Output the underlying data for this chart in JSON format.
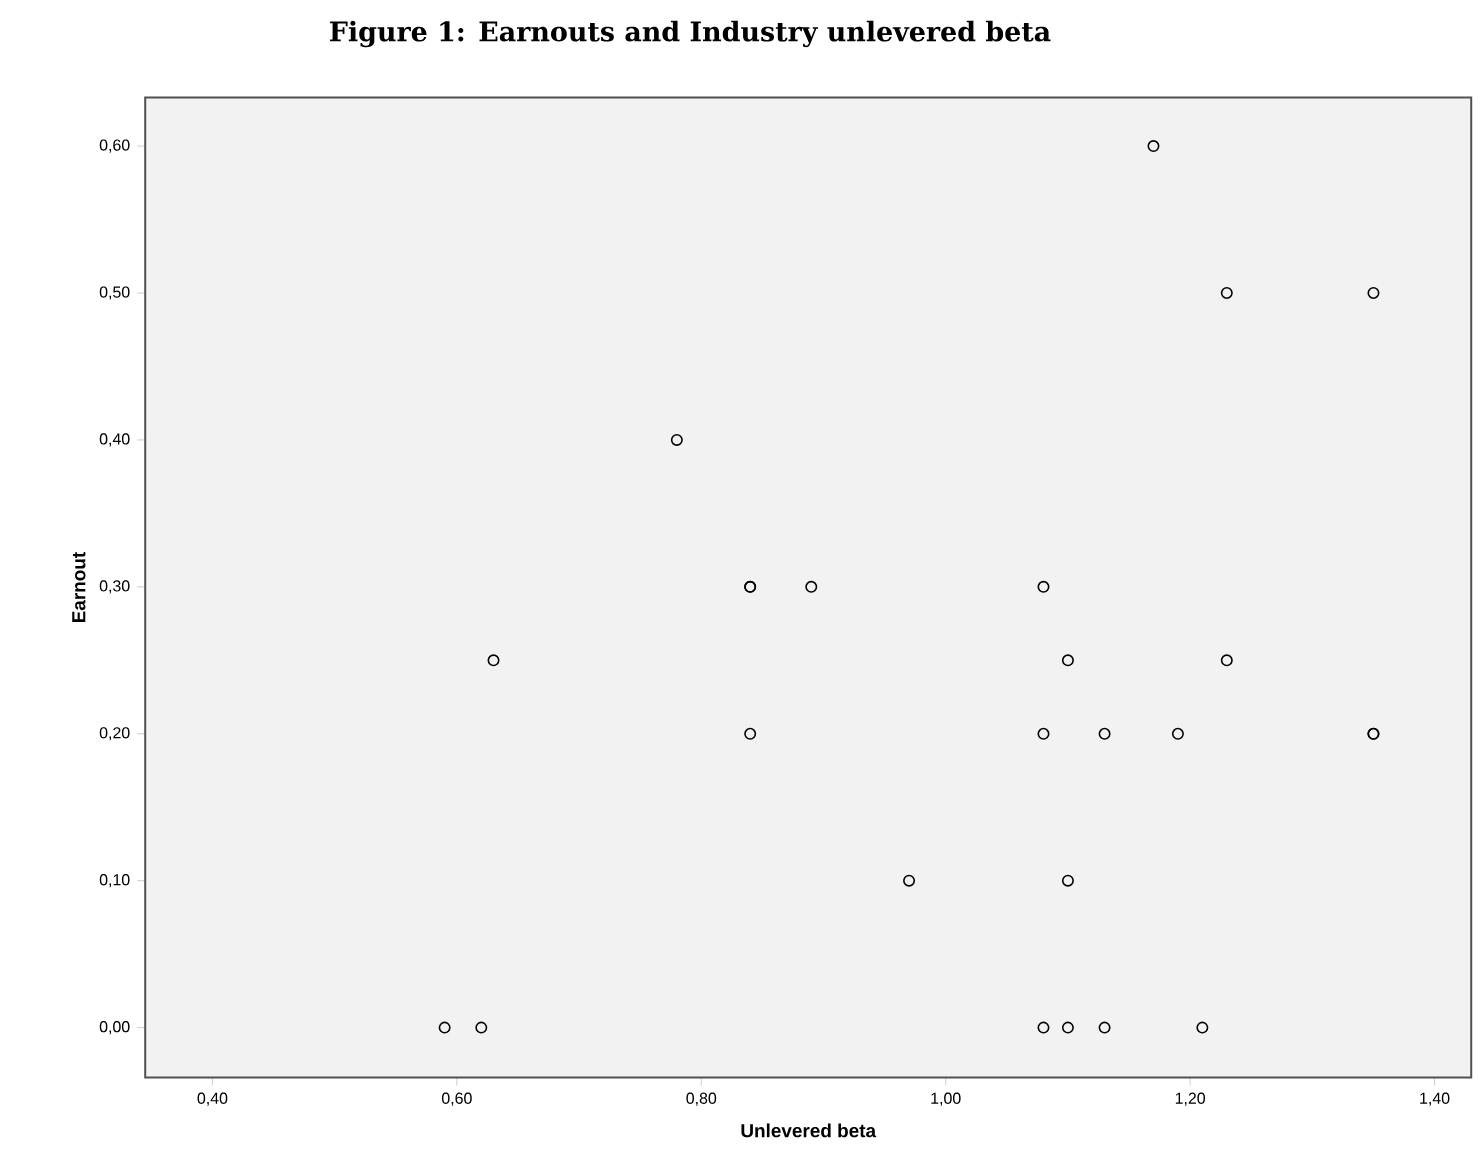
{
  "chart_data": {
    "type": "scatter",
    "title": "Figure 1: Earnouts and Industry unlevered beta",
    "xlabel": "Unlevered beta",
    "ylabel": "Earnout",
    "x": [
      0.59,
      0.62,
      1.08,
      1.1,
      1.13,
      1.21,
      0.97,
      1.1,
      0.84,
      1.08,
      1.13,
      1.19,
      1.35,
      1.35,
      0.63,
      1.1,
      1.23,
      0.84,
      0.84,
      0.89,
      1.08,
      0.78,
      1.17,
      1.23,
      1.35
    ],
    "series": [
      {
        "color": "#000000",
        "values": [
          0,
          0,
          0,
          0,
          0,
          0,
          0.1,
          0.1,
          0.2,
          0.2,
          0.2,
          0.2,
          0.2,
          0.2,
          0.25,
          0.25,
          0.25,
          0.3,
          0.3,
          0.3,
          0.3,
          0.4,
          0.6,
          0.5,
          0.5
        ]
      }
    ],
    "marker": "circle",
    "grid": false,
    "xlim": [
      0.345,
      1.43
    ],
    "ylim": [
      -0.034,
      0.633
    ],
    "xticks": [
      {
        "value": 0.4,
        "label": "0,40"
      },
      {
        "value": 0.6,
        "label": "0,60"
      },
      {
        "value": 0.8,
        "label": "0,80"
      },
      {
        "value": 1.0,
        "label": "1,00"
      },
      {
        "value": 1.2,
        "label": "1,20"
      },
      {
        "value": 1.4,
        "label": "1,40"
      }
    ],
    "yticks": [
      {
        "value": 0,
        "label": "0,00"
      },
      {
        "value": 0.1,
        "label": "0,10"
      },
      {
        "value": 0.2,
        "label": "0,20"
      },
      {
        "value": 0.3,
        "label": "0,30"
      },
      {
        "value": 0.4,
        "label": "0,40"
      },
      {
        "value": 0.5,
        "label": "0,50"
      },
      {
        "value": 0.6,
        "label": "0,60"
      }
    ]
  }
}
